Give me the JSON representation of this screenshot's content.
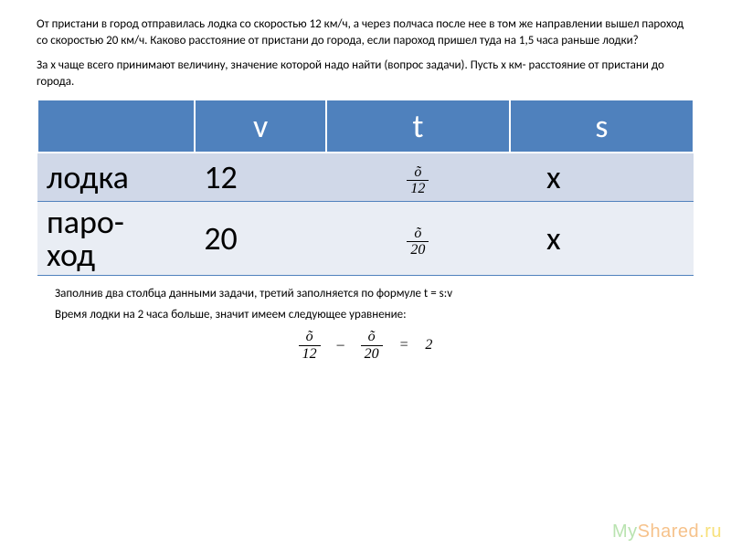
{
  "problem": {
    "p1": "От пристани в город отправилась лодка со скоростью 12 км/ч, а через полчаса после нее в том же направлении вышел пароход со скоростью 20 км/ч. Каково расстояние от пристани до города, если пароход пришел туда на 1,5 часа раньше лодки?",
    "p2": "За х чаще всего принимают величину, значение которой надо найти (вопрос задачи). Пусть х км- расстояние от пристани до города."
  },
  "table": {
    "headers": {
      "blank": "",
      "v": "v",
      "t": "t",
      "s": "s"
    },
    "rows": [
      {
        "label": "лодка",
        "v": "12",
        "t_num": "õ",
        "t_den": "12",
        "s": "х"
      },
      {
        "label": "паро-ход",
        "v": "20",
        "t_num": "õ",
        "t_den": "20",
        "s": "х"
      }
    ]
  },
  "explain": {
    "e1": "Заполнив два столбца данными задачи, третий заполняется по формуле t = s:v",
    "e2": "Время лодки на 2 часа больше, значит имеем следующее уравнение:"
  },
  "equation": {
    "f1_num": "õ",
    "f1_den": "12",
    "minus": "–",
    "f2_num": "õ",
    "f2_den": "20",
    "eq": "=",
    "rhs": "2"
  },
  "watermark": "MyShared.ru"
}
